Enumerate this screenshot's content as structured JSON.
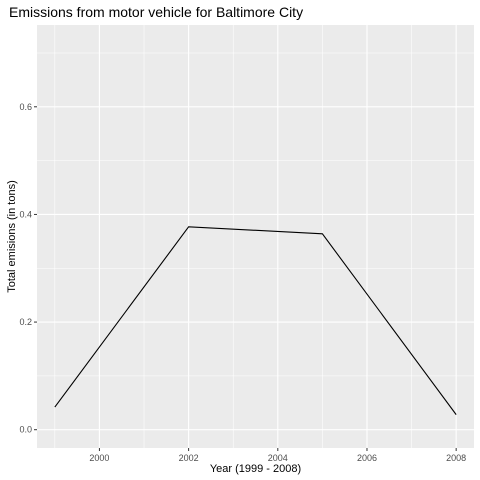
{
  "chart_data": {
    "type": "line",
    "title": "Emissions from motor vehicle for Baltimore City",
    "xlabel": "Year (1999 - 2008)",
    "ylabel": "Total emisions (in tons)",
    "x": [
      1999,
      2002,
      2005,
      2008
    ],
    "series": [
      {
        "values": [
          0.042,
          0.377,
          0.364,
          0.028
        ]
      }
    ],
    "xlim": [
      1998.6,
      2008.4
    ],
    "ylim": [
      -0.034,
      0.752
    ],
    "x_ticks": [
      "2000",
      "2002",
      "2004",
      "2006",
      "2008"
    ],
    "y_ticks": [
      "0.0",
      "0.2",
      "0.4",
      "0.6"
    ],
    "grid": true,
    "colors": {
      "panel": "#ebebeb",
      "grid": "#ffffff",
      "line": "#000000",
      "tick_text": "#4d4d4d"
    }
  }
}
